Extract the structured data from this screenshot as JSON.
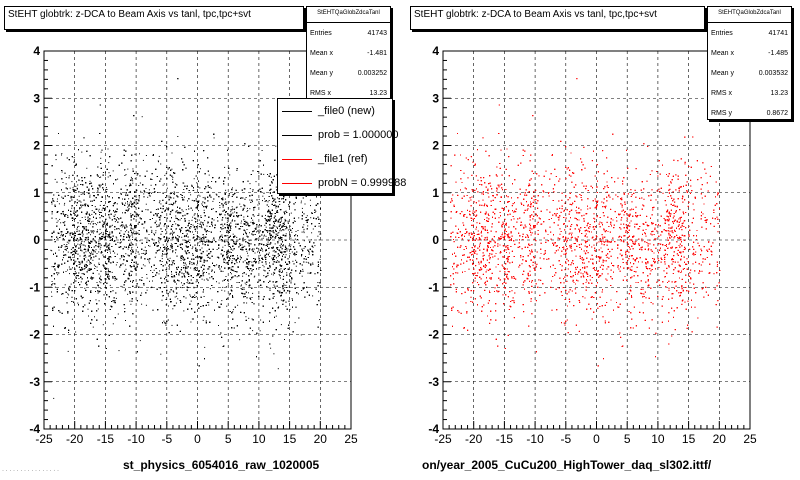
{
  "chart_data": [
    {
      "type": "scatter",
      "title": "StEHT globtrk: z-DCA to Beam Axis vs tanl, tpc,tpc+svt",
      "xlabel": "st_physics_6054016_raw_1020005",
      "ylabel": "",
      "xlim": [
        -25,
        25
      ],
      "ylim": [
        -4,
        4
      ],
      "xticks": [
        "-25",
        "-20",
        "-15",
        "-10",
        "-5",
        "0",
        "5",
        "10",
        "15",
        "20",
        "25"
      ],
      "yticks": [
        "-4",
        "-3",
        "-2",
        "-1",
        "0",
        "1",
        "2",
        "3",
        "4"
      ],
      "grid": true,
      "stats": {
        "header": "StEHTQaGlobZdcaTanl",
        "rows": [
          {
            "label": "Entries",
            "value": "41743"
          },
          {
            "label": "Mean x",
            "value": "-1.481"
          },
          {
            "label": "Mean y",
            "value": "0.003252"
          },
          {
            "label": "RMS x",
            "value": "13.23"
          }
        ]
      },
      "legend": {
        "placement": "top-right",
        "entries": [
          {
            "label": "_file0 (new)",
            "color": "#000000"
          },
          {
            "label": "prob = 1.000000",
            "color": "#000000"
          },
          {
            "label": "_file1 (ref)",
            "color": "#ff0000"
          },
          {
            "label": "probN = 0.999988",
            "color": "#ff0000"
          }
        ]
      },
      "series": [
        {
          "color": "#000000",
          "point_count": 14000
        }
      ]
    },
    {
      "type": "scatter",
      "title": "StEHT globtrk: z-DCA to Beam Axis vs tanl, tpc,tpc+svt",
      "xlabel": "on/year_2005_CuCu200_HighTower_daq_sl302.ittf/",
      "ylabel": "",
      "xlim": [
        -25,
        25
      ],
      "ylim": [
        -4,
        4
      ],
      "xticks": [
        "-25",
        "-20",
        "-15",
        "-10",
        "-5",
        "0",
        "5",
        "10",
        "15",
        "20",
        "25"
      ],
      "yticks": [
        "-4",
        "-3",
        "-2",
        "-1",
        "0",
        "1",
        "2",
        "3",
        "4"
      ],
      "grid": true,
      "stats": {
        "header": "StEHTQaGlobZdcaTanl",
        "rows": [
          {
            "label": "Entries",
            "value": "41741"
          },
          {
            "label": "Mean x",
            "value": "-1.485"
          },
          {
            "label": "Mean y",
            "value": "0.003532"
          },
          {
            "label": "RMS x",
            "value": "13.23"
          },
          {
            "label": "RMS y",
            "value": "0.8672"
          }
        ]
      },
      "series": [
        {
          "color": "#ff0000",
          "point_count": 9000
        }
      ]
    }
  ],
  "footer": "· · · · · · · · · · · · · · · ·"
}
